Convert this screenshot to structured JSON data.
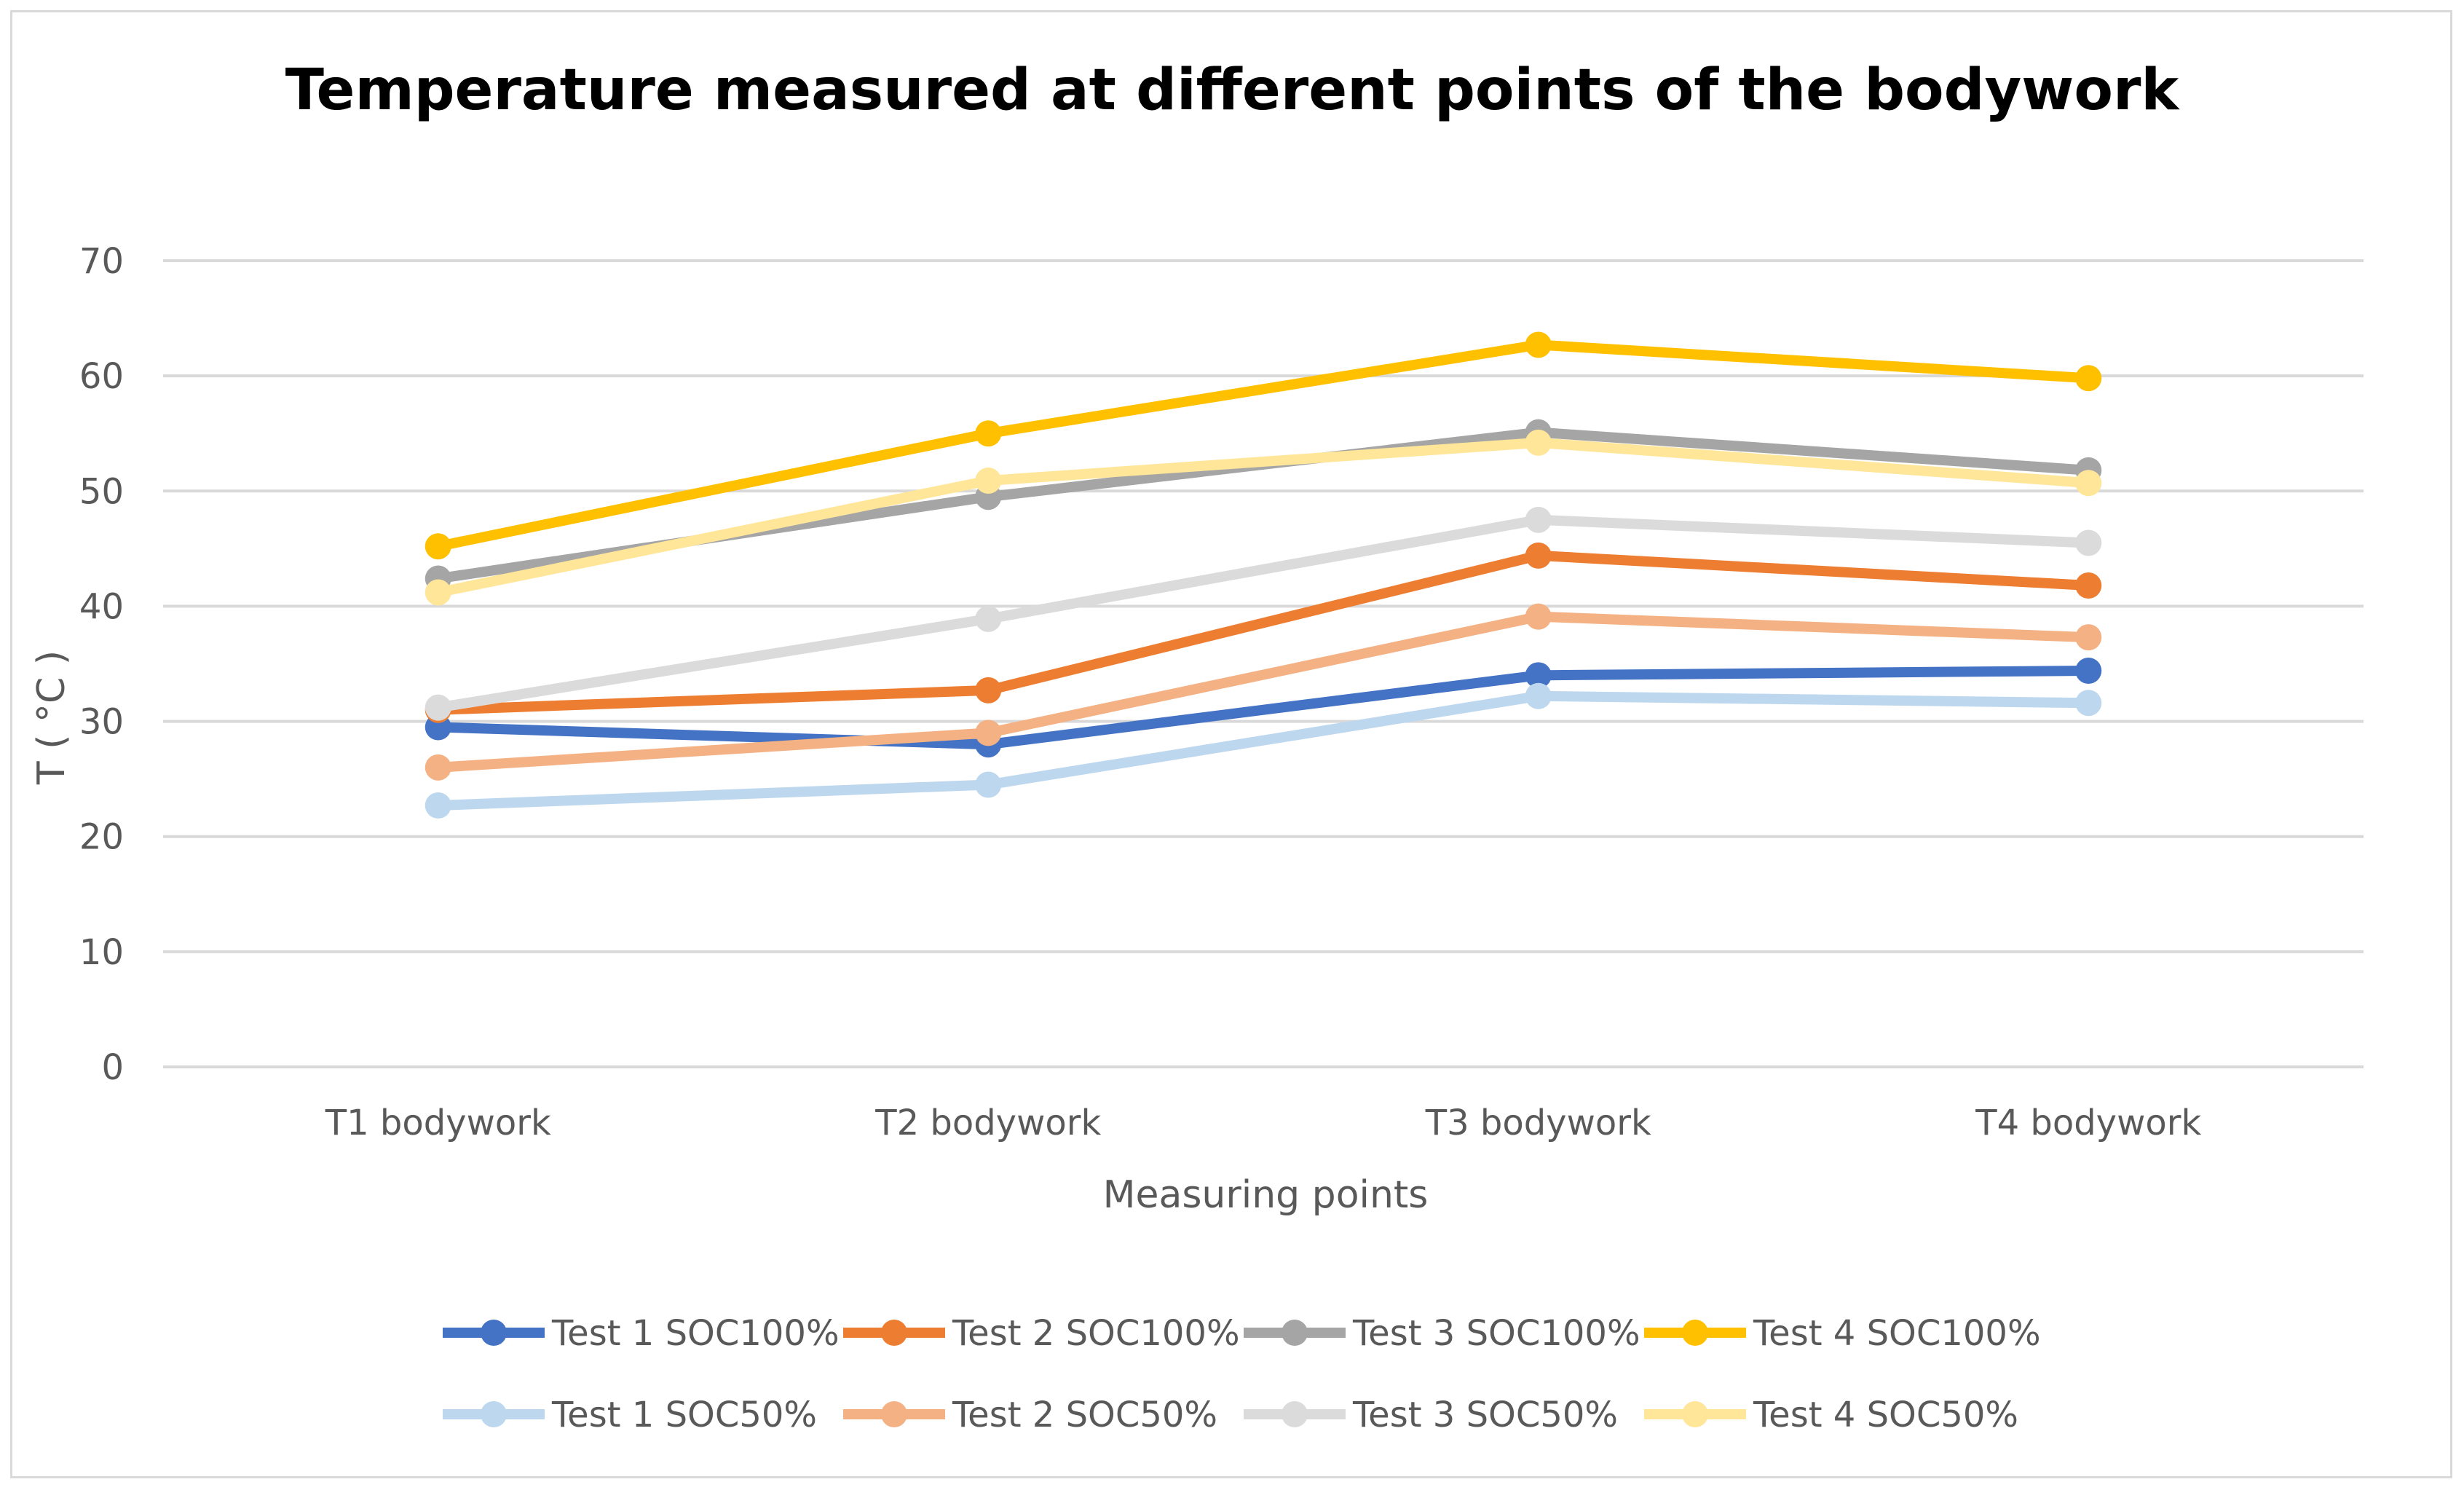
{
  "chart_data": {
    "type": "line",
    "title": "Temperature measured at different points of the bodywork",
    "xlabel": "Measuring points",
    "ylabel": "T ( °C )",
    "ylim": [
      0,
      70
    ],
    "yticks": [
      0,
      10,
      20,
      30,
      40,
      50,
      60,
      70
    ],
    "grid": true,
    "legend_position": "bottom",
    "categories": [
      "T1 bodywork",
      "T2 bodywork",
      "T3 bodywork",
      "T4 bodywork"
    ],
    "series": [
      {
        "name": "Test 1 SOC100%",
        "color": "#4472C4",
        "values": [
          29.5,
          28.0,
          34.0,
          34.4
        ]
      },
      {
        "name": "Test 2 SOC100%",
        "color": "#ED7D31",
        "values": [
          31.0,
          32.7,
          44.4,
          41.8
        ]
      },
      {
        "name": "Test 3 SOC100%",
        "color": "#A5A5A5",
        "values": [
          42.4,
          49.5,
          55.1,
          51.8
        ]
      },
      {
        "name": "Test 4 SOC100%",
        "color": "#FFC000",
        "values": [
          45.2,
          55.0,
          62.7,
          59.8
        ]
      },
      {
        "name": "Test 1 SOC50%",
        "color": "#BDD7EE",
        "values": [
          22.7,
          24.5,
          32.2,
          31.6
        ]
      },
      {
        "name": "Test 2 SOC50%",
        "color": "#F4B183",
        "values": [
          26.0,
          29.0,
          39.1,
          37.3
        ]
      },
      {
        "name": "Test 3 SOC50%",
        "color": "#DBDBDB",
        "values": [
          31.2,
          38.9,
          47.5,
          45.5
        ]
      },
      {
        "name": "Test 4 SOC50%",
        "color": "#FFE699",
        "values": [
          41.2,
          50.9,
          54.2,
          50.7
        ]
      }
    ]
  }
}
